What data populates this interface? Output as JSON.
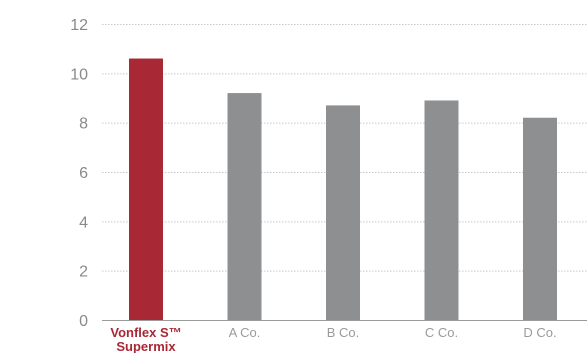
{
  "chart_data": {
    "type": "bar",
    "title": "",
    "xlabel": "",
    "ylabel": "",
    "ylim": [
      0,
      12
    ],
    "yticks": [
      0,
      2,
      4,
      6,
      8,
      10,
      12
    ],
    "grid": true,
    "categories": [
      [
        "Vonflex S™",
        "Supermix"
      ],
      [
        "A Co."
      ],
      [
        "B Co."
      ],
      [
        "C Co."
      ],
      [
        "D Co."
      ]
    ],
    "values": [
      10.6,
      9.2,
      8.7,
      8.9,
      8.2
    ],
    "highlight_index": 0,
    "colors": {
      "highlight": "#a82835",
      "default": "#8e8f91"
    }
  }
}
